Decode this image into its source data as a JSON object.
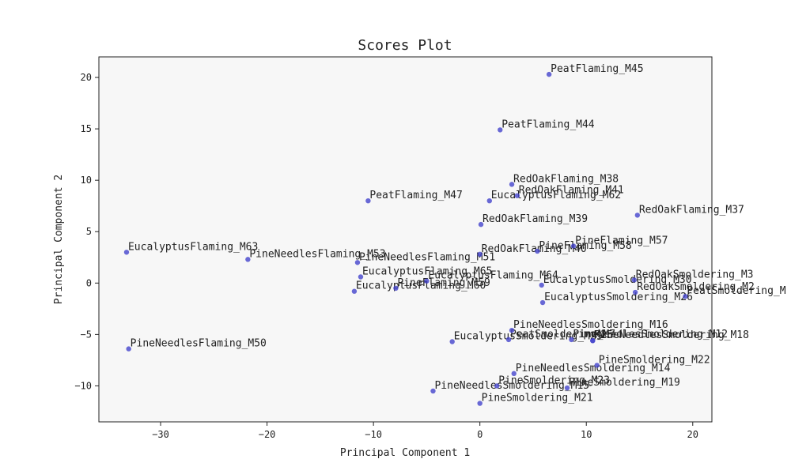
{
  "chart_data": {
    "type": "scatter",
    "title": "Scores Plot",
    "xlabel": "Principal Component 1",
    "ylabel": "Principal Component 2",
    "xlim": [
      -35.8,
      21.8
    ],
    "ylim": [
      -13.5,
      22.0
    ],
    "xticks": [
      -30,
      -20,
      -10,
      0,
      10,
      20
    ],
    "yticks": [
      -10,
      -5,
      0,
      5,
      10,
      15,
      20
    ],
    "xtick_labels": [
      "−30",
      "−20",
      "−10",
      "0",
      "10",
      "20"
    ],
    "ytick_labels": [
      "−10",
      "−5",
      "0",
      "5",
      "10",
      "15",
      "20"
    ],
    "grid": false,
    "point_color": "#4444cc",
    "plot_background": "#f7f7f7",
    "points": [
      {
        "label": "PeatFlaming_M45",
        "x": 6.5,
        "y": 20.3
      },
      {
        "label": "PeatFlaming_M44",
        "x": 1.9,
        "y": 14.9
      },
      {
        "label": "RedOakFlaming_M38",
        "x": 3.0,
        "y": 9.6
      },
      {
        "label": "RedOakFlaming_M41",
        "x": 3.5,
        "y": 8.5
      },
      {
        "label": "EucalyptusFlaming_M62",
        "x": 0.9,
        "y": 8.0
      },
      {
        "label": "PeatFlaming_M47",
        "x": -10.5,
        "y": 8.0
      },
      {
        "label": "RedOakFlaming_M37",
        "x": 14.8,
        "y": 6.6
      },
      {
        "label": "RedOakFlaming_M39",
        "x": 0.1,
        "y": 5.7
      },
      {
        "label": "PineFlaming_M57",
        "x": 8.8,
        "y": 3.6
      },
      {
        "label": "PineFlaming_M58",
        "x": 5.4,
        "y": 3.1
      },
      {
        "label": "RedOakFlaming_M40",
        "x": -0.0,
        "y": 2.8
      },
      {
        "label": "EucalyptusFlaming_M63",
        "x": -33.2,
        "y": 3.0
      },
      {
        "label": "PineNeedlesFlaming_M53",
        "x": -21.8,
        "y": 2.3
      },
      {
        "label": "PineNeedlesFlaming_M51",
        "x": -11.5,
        "y": 2.0
      },
      {
        "label": "EucalyptusFlaming_M65",
        "x": -11.2,
        "y": 0.6
      },
      {
        "label": "EucalyptusFlaming_M64",
        "x": -5.0,
        "y": 0.2
      },
      {
        "label": "PineFlaming_M59",
        "x": -7.9,
        "y": -0.5
      },
      {
        "label": "EucalyptusFlaming_M60",
        "x": -11.8,
        "y": -0.8
      },
      {
        "label": "EucalyptusSmoldering_M30",
        "x": 5.8,
        "y": -0.2
      },
      {
        "label": "RedOakSmoldering_M3",
        "x": 14.5,
        "y": 0.3
      },
      {
        "label": "RedOakSmoldering_M2",
        "x": 14.6,
        "y": -0.9
      },
      {
        "label": "PeatSmoldering_M",
        "x": 19.3,
        "y": -1.3
      },
      {
        "label": "EucalyptusSmoldering_M26",
        "x": 5.9,
        "y": -1.9
      },
      {
        "label": "PineNeedlesSmoldering_M16",
        "x": 3.0,
        "y": -4.6
      },
      {
        "label": "PeatSmoldering_M7",
        "x": 2.7,
        "y": -5.5
      },
      {
        "label": "PineNeedlesSmoldering_M12",
        "x": 8.6,
        "y": -5.5
      },
      {
        "label": "M25",
        "x": 10.6,
        "y": -5.6
      },
      {
        "label": "PineNeedlesSmoldering_M18",
        "x": 10.6,
        "y": -5.6
      },
      {
        "label": "EucalyptusSmoldering_M29",
        "x": -2.6,
        "y": -5.7
      },
      {
        "label": "PineNeedlesFlaming_M50",
        "x": -33.0,
        "y": -6.4
      },
      {
        "label": "PineSmoldering_M22",
        "x": 11.0,
        "y": -8.0
      },
      {
        "label": "PineNeedlesSmoldering_M14",
        "x": 3.2,
        "y": -8.8
      },
      {
        "label": "PineSmoldering_M23",
        "x": 1.6,
        "y": -10.0
      },
      {
        "label": "PineSmoldering_M19",
        "x": 8.2,
        "y": -10.2
      },
      {
        "label": "PineNeedlesSmoldering_M15",
        "x": -4.4,
        "y": -10.5
      },
      {
        "label": "PineSmoldering_M21",
        "x": -0.0,
        "y": -11.7
      }
    ]
  }
}
